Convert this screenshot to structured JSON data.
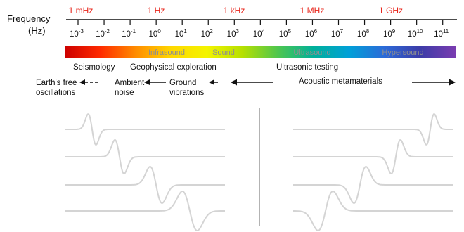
{
  "header": {
    "title_line1": "Frequency",
    "title_line2": "(Hz)",
    "unit_labels": [
      "1 mHz",
      "1 Hz",
      "1 kHz",
      "1 MHz",
      "1 GHz"
    ],
    "unit_label_color": "#e8241a",
    "unit_label_exponents": [
      -3,
      0,
      3,
      6,
      9
    ]
  },
  "axis": {
    "exponents": [
      "-3",
      "-2",
      "-1",
      "0",
      "1",
      "2",
      "3",
      "4",
      "5",
      "6",
      "7",
      "8",
      "9",
      "10",
      "11"
    ],
    "base": "10"
  },
  "spectrum": {
    "bands": [
      "Infrasound",
      "Sound",
      "Ultrasound",
      "Hypersound"
    ],
    "band_text_color": "#8f8f8f",
    "gradient_colors": [
      "#cc0000",
      "#ff2a00",
      "#ff8c00",
      "#ffd800",
      "#f4f400",
      "#b6e000",
      "#4ec64e",
      "#00b09a",
      "#00a0d8",
      "#2c6ad8",
      "#3c3ca8",
      "#7a3cb0"
    ]
  },
  "applications": {
    "seismology": "Seismology",
    "geophysical": "Geophysical exploration",
    "ultrasonic": "Ultrasonic testing"
  },
  "sources": {
    "earth_line1": "Earth's free",
    "earth_line2": "oscillations",
    "ambient_line1": "Ambient",
    "ambient_line2": "noise",
    "ground_line1": "Ground",
    "ground_line2": "vibrations",
    "metamaterials": "Acoustic metamaterials"
  },
  "waveforms": {
    "trace_color": "#d4d4d4",
    "divider_color": "#9a9a9a",
    "left_count": 4,
    "right_count": 4
  }
}
